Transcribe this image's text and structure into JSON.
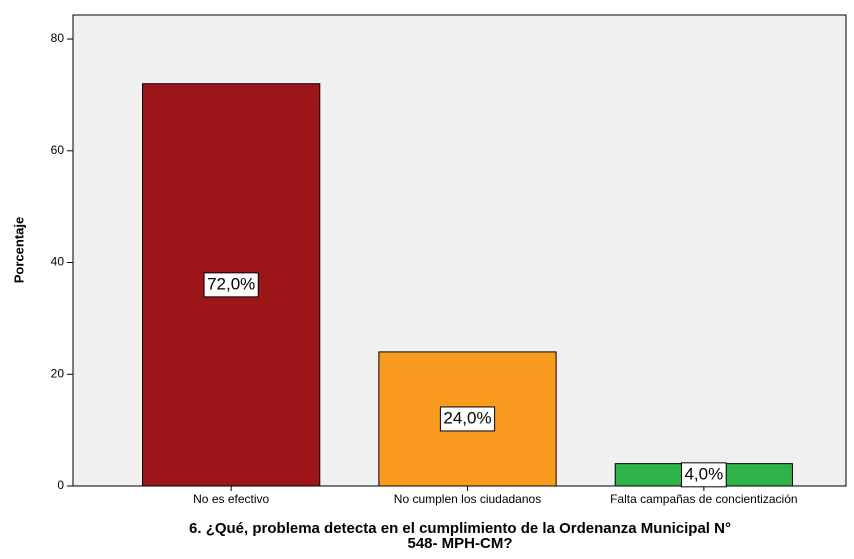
{
  "chart_data": {
    "type": "bar",
    "x_label": [
      "6. ¿Qué, problema detecta en el cumplimiento de la Ordenanza Municipal N°",
      "548- MPH-CM?"
    ],
    "y_label": "Porcentaje",
    "categories": [
      "No es efectivo",
      "No cumplen los ciudadanos",
      "Falta campañas de concientización"
    ],
    "values": [
      72,
      24,
      4
    ],
    "value_labels": [
      "72,0%",
      "24,0%",
      "4,0%"
    ],
    "colors": [
      "#9c1619",
      "#f89b1f",
      "#2eb34b"
    ],
    "ylim": [
      0,
      84.3
    ],
    "yticks": [
      0,
      20,
      40,
      60,
      80
    ]
  }
}
